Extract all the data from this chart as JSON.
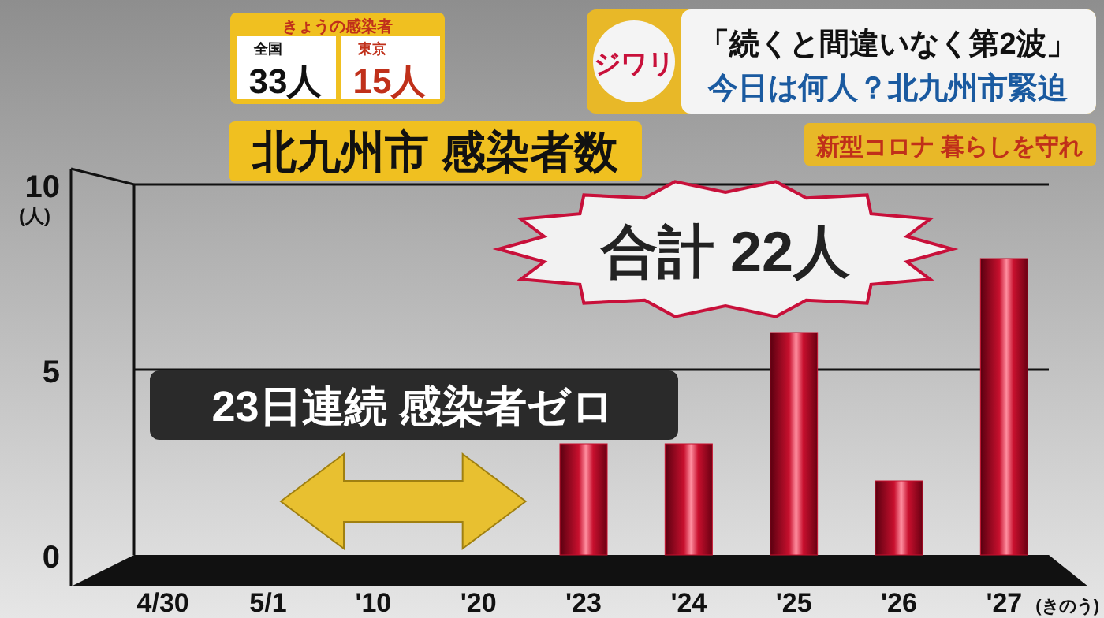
{
  "chart_data": {
    "type": "bar",
    "title": "北九州市 感染者数",
    "ylabel": "(人)",
    "categories": [
      "4/30",
      "5/1",
      "'10",
      "'20",
      "'23",
      "'24",
      "'25",
      "'26",
      "'27"
    ],
    "values": [
      null,
      null,
      null,
      null,
      3,
      3,
      6,
      2,
      8
    ],
    "color": "#c8102e",
    "ylim": [
      0,
      10
    ],
    "yticks": [
      0,
      5,
      10
    ],
    "grid": "y",
    "annotations": [
      "(きのう)",
      "23日連続 感染者ゼロ",
      "合計 22人",
      "きょうの感染者",
      "全国",
      "33人",
      "東京",
      "15人",
      "ジワリ",
      "「続くと間違いなく第2波」",
      "今日は何人？北九州市緊迫",
      "新型コロナ 暮らしを守れ"
    ]
  }
}
